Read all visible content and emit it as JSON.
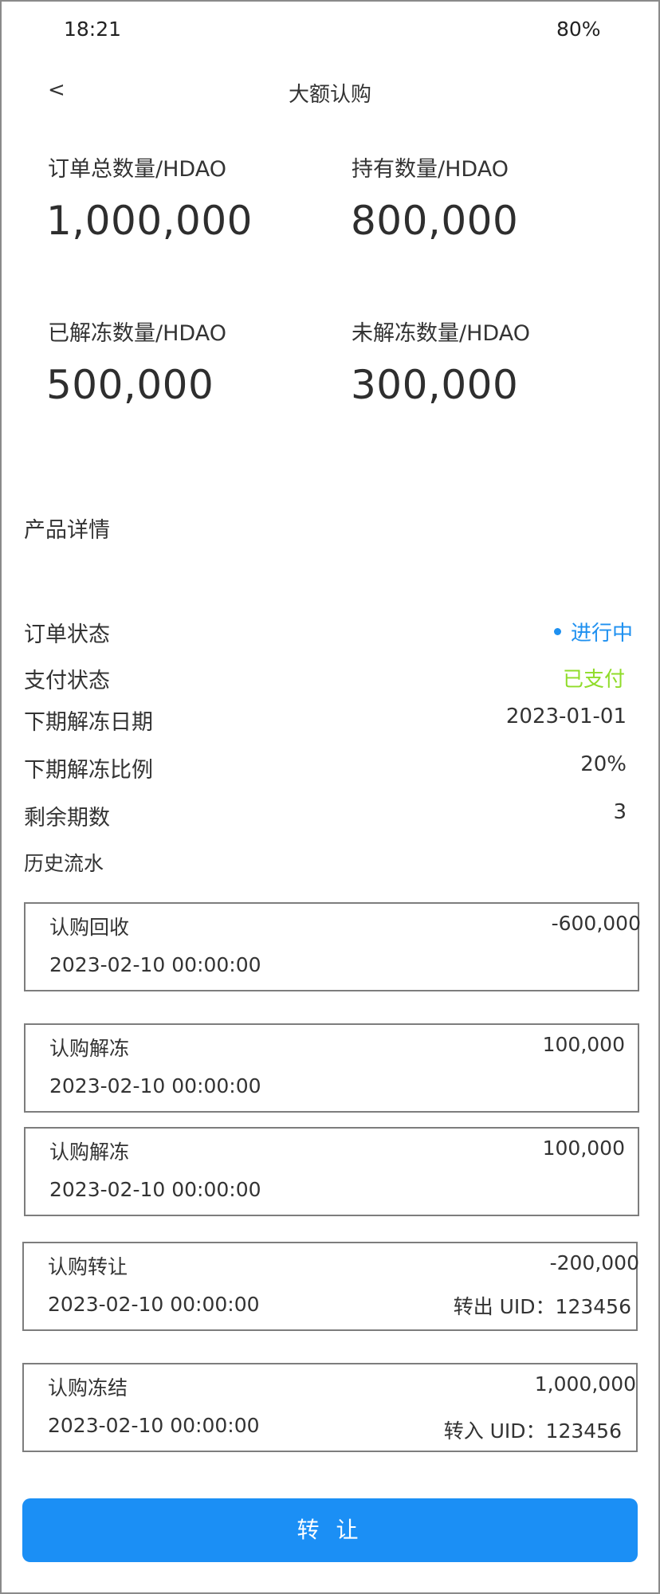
{
  "status_bar": {
    "time": "18:21",
    "battery": "80%"
  },
  "header": {
    "back": "<",
    "title": "大额认购"
  },
  "stats": {
    "total_label": "订单总数量/HDAO",
    "total_value": "1,000,000",
    "held_label": "持有数量/HDAO",
    "held_value": "800,000",
    "unfrozen_label": "已解冻数量/HDAO",
    "unfrozen_value": "500,000",
    "frozen_label": "未解冻数量/HDAO",
    "frozen_value": "300,000"
  },
  "details": {
    "section_title": "产品详情",
    "order_status_label": "订单状态",
    "order_status_value": "进行中",
    "pay_status_label": "支付状态",
    "pay_status_value": "已支付",
    "next_date_label": "下期解冻日期",
    "next_date_value": "2023-01-01",
    "next_ratio_label": "下期解冻比例",
    "next_ratio_value": "20%",
    "remaining_label": "剩余期数",
    "remaining_value": "3"
  },
  "history": {
    "label": "历史流水",
    "records": [
      {
        "type": "认购回收",
        "amount": "-600,000",
        "date": "2023-02-10 00:00:00",
        "uid": ""
      },
      {
        "type": "认购解冻",
        "amount": "100,000",
        "date": "2023-02-10 00:00:00",
        "uid": ""
      },
      {
        "type": "认购解冻",
        "amount": "100,000",
        "date": "2023-02-10 00:00:00",
        "uid": ""
      },
      {
        "type": "认购转让",
        "amount": "-200,000",
        "date": "2023-02-10 00:00:00",
        "uid": "转出 UID：123456"
      },
      {
        "type": "认购冻结",
        "amount": "1,000,000",
        "date": "2023-02-10 00:00:00",
        "uid": "转入 UID：123456"
      }
    ]
  },
  "actions": {
    "transfer_label": "转 让"
  },
  "colors": {
    "accent": "#1b8ff5",
    "status_active": "#1e90f0",
    "status_paid": "#90dc2a"
  }
}
